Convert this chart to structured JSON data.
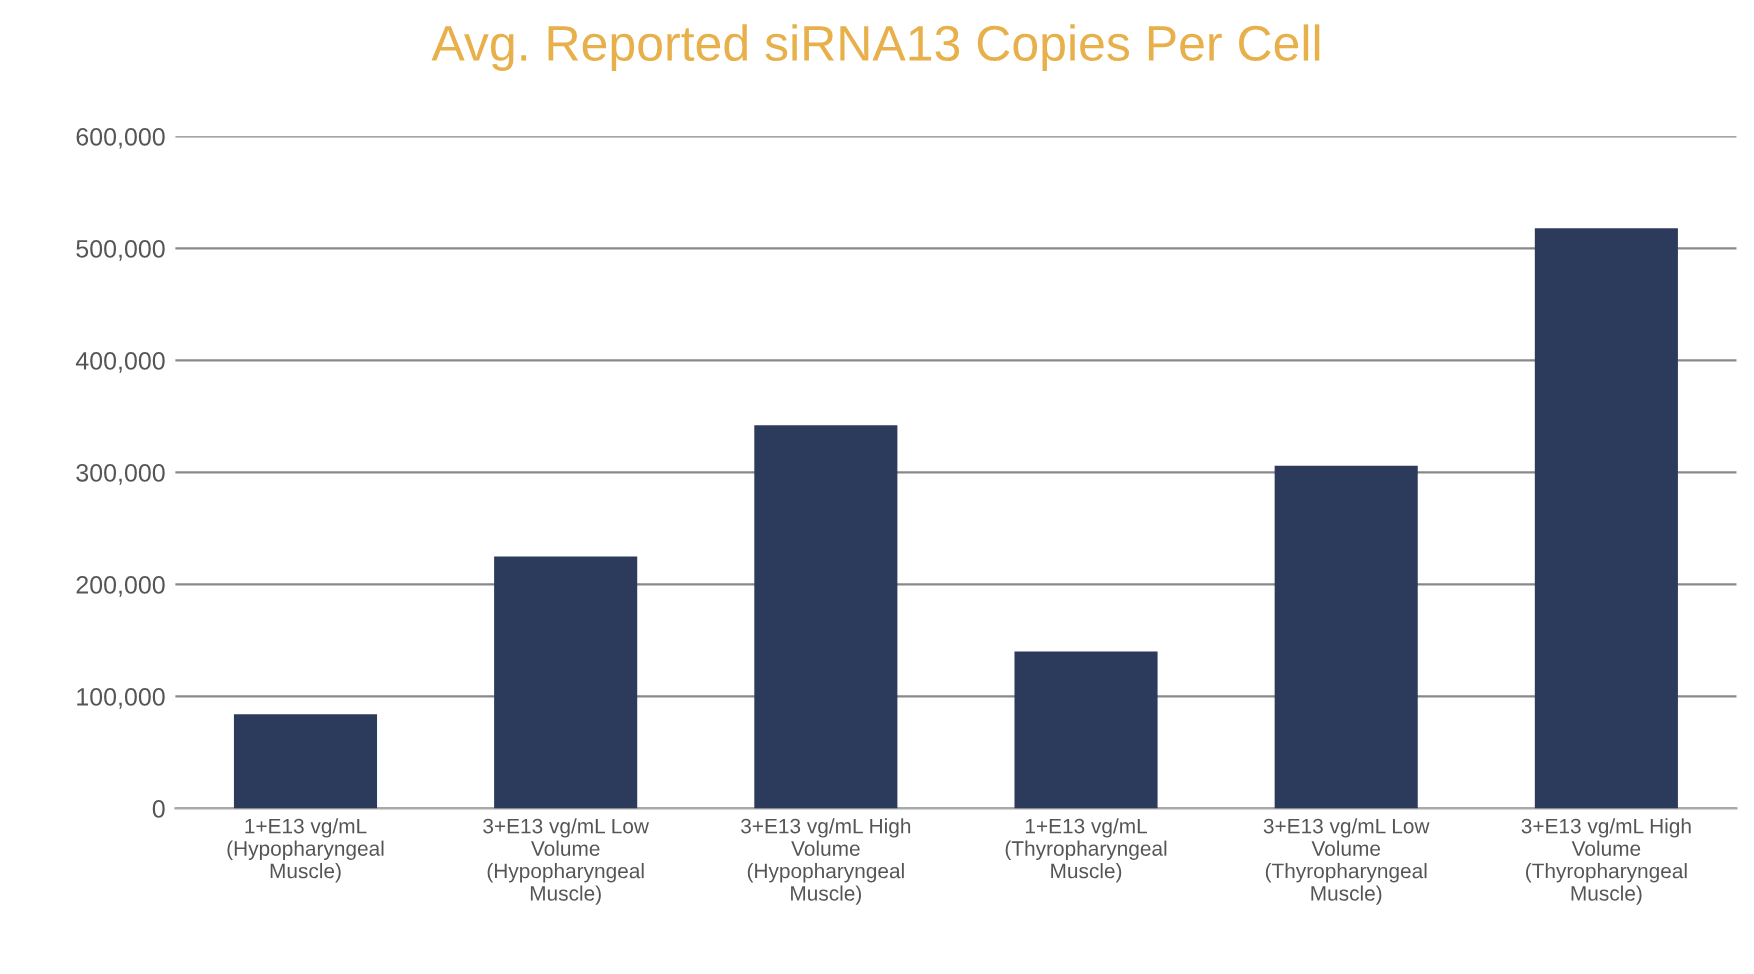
{
  "chart_data": {
    "type": "bar",
    "title": "Avg. Reported siRNA13 Copies Per Cell",
    "categories": [
      "1+E13 vg/mL\n(Hypopharyngeal\nMuscle)",
      "3+E13 vg/mL Low\nVolume\n(Hypopharyngeal\nMuscle)",
      "3+E13 vg/mL High\nVolume\n(Hypopharyngeal\nMuscle)",
      "1+E13 vg/mL\n(Thyropharyngeal\nMuscle)",
      "3+E13 vg/mL Low\nVolume\n(Thyropharyngeal\nMuscle)",
      "3+E13 vg/mL High\nVolume\n(Thyropharyngeal\nMuscle)"
    ],
    "values": [
      84000,
      225000,
      342000,
      140000,
      306000,
      518000
    ],
    "color": "#2c3b5c",
    "ylim": [
      0,
      600000
    ],
    "yticks": [
      {
        "value": 0,
        "label": "0"
      },
      {
        "value": 100000,
        "label": "100,000"
      },
      {
        "value": 200000,
        "label": "200,000"
      },
      {
        "value": 300000,
        "label": "300,000"
      },
      {
        "value": 400000,
        "label": "400,000"
      },
      {
        "value": 500000,
        "label": "500,000"
      },
      {
        "value": 600000,
        "label": "600,000"
      }
    ],
    "grid": "y"
  }
}
